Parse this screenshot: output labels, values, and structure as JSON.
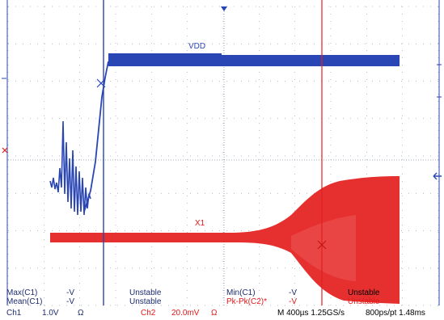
{
  "colors": {
    "ch1": "#2a45b4",
    "ch2": "#e63030",
    "grid": "#9aa4b8",
    "frame": "#2a45b4",
    "text_dark": "#1d2c6e"
  },
  "traces": {
    "ch1_label": "VDD",
    "ch2_label": "X1"
  },
  "measurements": {
    "row1_left_name": "Max(C1)",
    "row1_left_value": "-V",
    "row1_left_status": "Unstable",
    "row1_right_name": "Min(C1)",
    "row1_right_value": "-V",
    "row1_right_status": "Unstable",
    "row2_left_name": "Mean(C1)",
    "row2_left_value": "-V",
    "row2_left_status": "Unstable",
    "row2_right_name": "Pk-Pk(C2)*",
    "row2_right_value": "-V",
    "row2_right_status": "Unstable"
  },
  "status_bar": {
    "ch1_name": "Ch1",
    "ch1_scale": "1.0V",
    "ch1_coupling": "Ω",
    "ch2_name": "Ch2",
    "ch2_scale": "20.0mV",
    "ch2_coupling": "Ω",
    "timebase": "M 400µs 1.25GS/s",
    "record": "800ps/pt 1.48ms"
  },
  "markers": {
    "trigger_x": "×",
    "left_marker": "×"
  }
}
